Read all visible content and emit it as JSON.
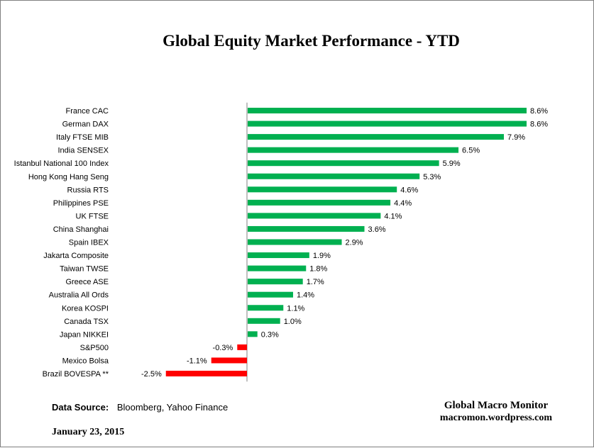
{
  "chart_data": {
    "type": "bar",
    "orientation": "horizontal",
    "title": "Global Equity Market Performance - YTD",
    "categories": [
      "France CAC",
      "German DAX",
      "Italy FTSE MIB",
      "India SENSEX",
      "Istanbul National 100 Index",
      "Hong Kong Hang Seng",
      "Russia RTS",
      "Philippines PSE",
      "UK FTSE",
      "China Shanghai",
      "Spain IBEX",
      "Jakarta Composite",
      "Taiwan  TWSE",
      "Greece ASE",
      "Australia All Ords",
      "Korea KOSPI",
      "Canada TSX",
      "Japan NIKKEI",
      "S&P500",
      "Mexico Bolsa",
      "Brazil BOVESPA **"
    ],
    "values": [
      8.6,
      8.6,
      7.9,
      6.5,
      5.9,
      5.3,
      4.6,
      4.4,
      4.1,
      3.6,
      2.9,
      1.9,
      1.8,
      1.7,
      1.4,
      1.1,
      1.0,
      0.3,
      -0.3,
      -1.1,
      -2.5
    ],
    "value_labels": [
      "8.6%",
      "8.6%",
      "7.9%",
      "6.5%",
      "5.9%",
      "5.3%",
      "4.6%",
      "4.4%",
      "4.1%",
      "3.6%",
      "2.9%",
      "1.9%",
      "1.8%",
      "1.7%",
      "1.4%",
      "1.1%",
      "1.0%",
      "0.3%",
      "-0.3%",
      "-1.1%",
      "-2.5%"
    ],
    "xlabel": "",
    "ylabel": "",
    "xlim": [
      -2.5,
      8.6
    ],
    "grid": false,
    "legend": "none",
    "colors": {
      "positive": "#00b050",
      "negative": "#ff0000"
    }
  },
  "footer": {
    "source_label": "Data Source:",
    "source_text": "Bloomberg, Yahoo Finance",
    "date": "January  23, 2015"
  },
  "brand": {
    "name": "Global Macro Monitor",
    "url": "macromon.wordpress.com"
  }
}
